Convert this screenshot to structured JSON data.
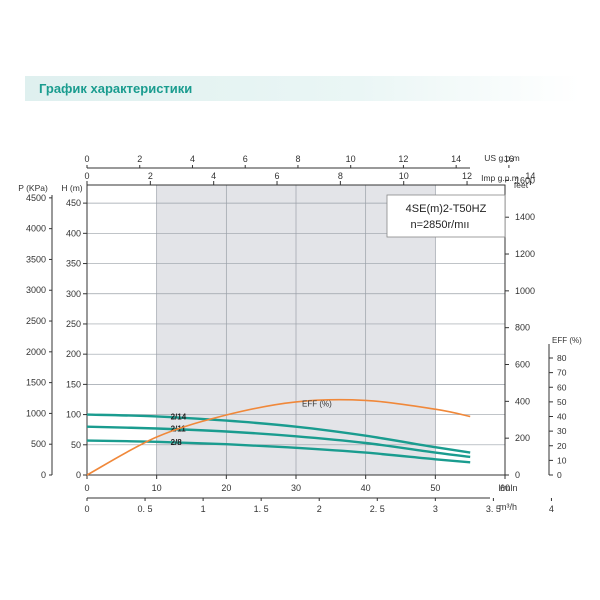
{
  "header": {
    "title": "График характеристики"
  },
  "colors": {
    "accent": "#1a9c8f",
    "curve_head": "#1a9c8f",
    "curve_eff": "#f0883a",
    "shade": "#e3e4e8"
  },
  "chart_data": {
    "type": "line",
    "title": "4SE(m)2-T50HZ",
    "subtitle": "n=2850r/mıı",
    "model_label": "4SE(m)2-T50HZ",
    "speed_label": "n=2850r/mıı",
    "x_axis": {
      "label": "l/mln",
      "ticks": [
        "0",
        "10",
        "20",
        "30",
        "40",
        "50",
        "60"
      ],
      "range": [
        0,
        60
      ]
    },
    "x_axis_m3": {
      "label": "m³/h",
      "ticks": [
        "0",
        "0. 5",
        "1",
        "1. 5",
        "2",
        "2. 5",
        "3",
        "3. 5",
        "4"
      ]
    },
    "x_axis_us": {
      "label": "US g.p.m",
      "ticks": [
        "0",
        "2",
        "4",
        "6",
        "8",
        "10",
        "12",
        "14",
        "16"
      ]
    },
    "x_axis_imp": {
      "label": "Imp g.p.m",
      "ticks": [
        "0",
        "2",
        "4",
        "6",
        "8",
        "10",
        "12",
        "14"
      ]
    },
    "y_axis_h": {
      "label": "H (m)",
      "ticks": [
        "0",
        "50",
        "100",
        "150",
        "200",
        "250",
        "300",
        "350",
        "400",
        "450"
      ],
      "range": [
        0,
        480
      ]
    },
    "y_axis_p": {
      "label": "P (KPa)",
      "ticks": [
        "0",
        "500",
        "1000",
        "1500",
        "2000",
        "2500",
        "3000",
        "3500",
        "4000",
        "4500"
      ]
    },
    "y_axis_feet": {
      "label": "feet",
      "ticks": [
        "0",
        "200",
        "400",
        "600",
        "800",
        "1000",
        "1200",
        "1400",
        "1600"
      ]
    },
    "y_axis_eff": {
      "label": "EFF (%)",
      "ticks": [
        "0",
        "10",
        "20",
        "30",
        "40",
        "50",
        "60",
        "70",
        "80"
      ],
      "range": [
        0,
        80
      ]
    },
    "shaded_range": [
      10,
      50
    ],
    "series": [
      {
        "name": "2/14",
        "x": [
          0,
          10,
          20,
          30,
          40,
          50,
          55
        ],
        "values": [
          100,
          97,
          90,
          80,
          65,
          46,
          37
        ]
      },
      {
        "name": "2/11",
        "x": [
          0,
          10,
          20,
          30,
          40,
          50,
          55
        ],
        "values": [
          80,
          77,
          72,
          64,
          53,
          37,
          30
        ]
      },
      {
        "name": "2/8",
        "x": [
          0,
          10,
          20,
          30,
          40,
          50,
          55
        ],
        "values": [
          57,
          55,
          51,
          45,
          37,
          26,
          21
        ]
      },
      {
        "name": "EFF (%)",
        "x": [
          0,
          10,
          20,
          30,
          40,
          50,
          55
        ],
        "values": [
          0,
          26,
          41,
          50,
          51,
          45,
          40
        ]
      }
    ]
  }
}
